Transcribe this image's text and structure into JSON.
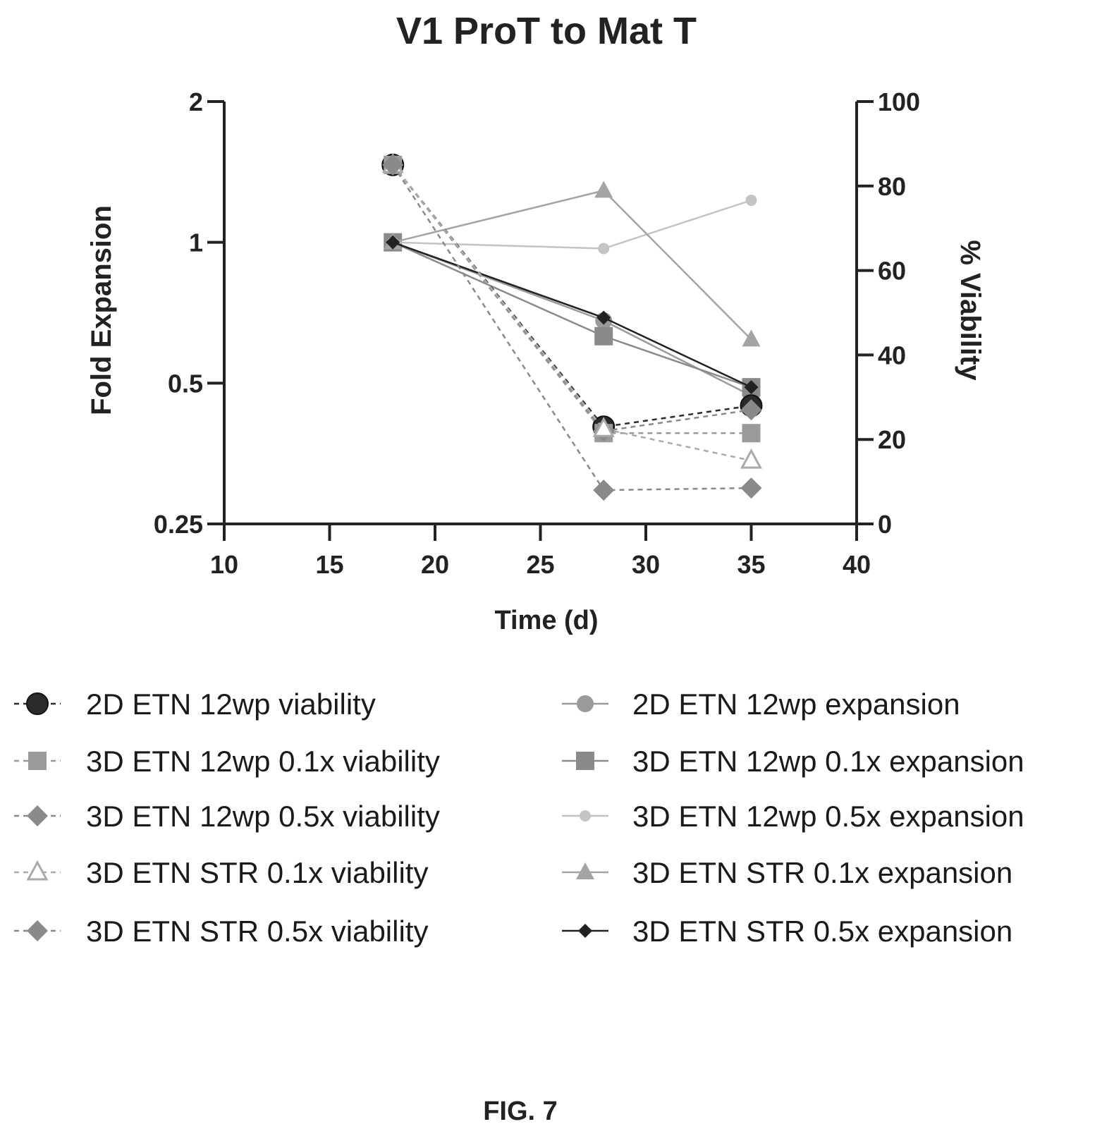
{
  "chart_data": {
    "type": "line",
    "title": "V1 ProT to Mat T",
    "xlabel": "Time (d)",
    "ylabel_left": "Fold Expansion",
    "ylabel_right": "% Viability",
    "xlim": [
      10,
      40
    ],
    "xticks": [
      10,
      15,
      20,
      25,
      30,
      35,
      40
    ],
    "ylim_left": [
      0.25,
      2
    ],
    "yscale_left": "log2",
    "yticks_left": [
      "0.25",
      "0.5",
      "1",
      "2"
    ],
    "yticks_left_values": [
      0.25,
      0.5,
      1,
      2
    ],
    "ylim_right": [
      0,
      100
    ],
    "yticks_right": [
      0,
      20,
      40,
      60,
      80,
      100
    ],
    "grid": false,
    "legend_position": "bottom",
    "series": [
      {
        "name": "2D ETN 12wp viability",
        "axis": "right",
        "x": [
          18,
          28,
          35
        ],
        "y": [
          85,
          23,
          28
        ],
        "marker": "circle-large",
        "line": "dashed",
        "color": "#2b2b2b"
      },
      {
        "name": "3D ETN 12wp 0.1x viability",
        "axis": "right",
        "x": [
          18,
          28,
          35
        ],
        "y": [
          85,
          21.5,
          21.5
        ],
        "marker": "square",
        "line": "dashed",
        "color": "#9a9a9a"
      },
      {
        "name": "3D ETN 12wp 0.5x viability",
        "axis": "right",
        "x": [
          18,
          28,
          35
        ],
        "y": [
          85,
          22,
          27
        ],
        "marker": "diamond",
        "line": "dashed",
        "color": "#8a8a8a"
      },
      {
        "name": "3D ETN STR 0.1x viability",
        "axis": "right",
        "x": [
          18,
          28,
          35
        ],
        "y": [
          85,
          22.5,
          15
        ],
        "marker": "triangle-open",
        "line": "dashed",
        "color": "#aaaaaa"
      },
      {
        "name": "3D ETN STR 0.5x viability",
        "axis": "right",
        "x": [
          18,
          28,
          35
        ],
        "y": [
          85,
          8,
          8.5
        ],
        "marker": "diamond",
        "line": "dashed",
        "color": "#8a8a8a"
      },
      {
        "name": "2D ETN 12wp expansion",
        "axis": "left",
        "x": [
          18,
          28,
          35
        ],
        "y": [
          1,
          0.68,
          0.47
        ],
        "marker": "circle",
        "line": "solid",
        "color": "#9a9a9a"
      },
      {
        "name": "3D ETN 12wp 0.1x expansion",
        "axis": "left",
        "x": [
          18,
          28,
          35
        ],
        "y": [
          1,
          0.63,
          0.49
        ],
        "marker": "square",
        "line": "solid",
        "color": "#8a8a8a"
      },
      {
        "name": "3D ETN 12wp 0.5x expansion",
        "axis": "left",
        "x": [
          18,
          28,
          35
        ],
        "y": [
          1,
          0.97,
          1.23
        ],
        "marker": "circle-small",
        "line": "solid",
        "color": "#c4c4c4"
      },
      {
        "name": "3D ETN STR 0.1x expansion",
        "axis": "left",
        "x": [
          18,
          28,
          35
        ],
        "y": [
          1,
          1.29,
          0.62
        ],
        "marker": "triangle",
        "line": "solid",
        "color": "#a4a4a4"
      },
      {
        "name": "3D ETN STR 0.5x expansion",
        "axis": "left",
        "x": [
          18,
          28,
          35
        ],
        "y": [
          1,
          0.69,
          0.49
        ],
        "marker": "diamond-small",
        "line": "solid",
        "color": "#222222"
      }
    ]
  },
  "caption": "FIG. 7"
}
